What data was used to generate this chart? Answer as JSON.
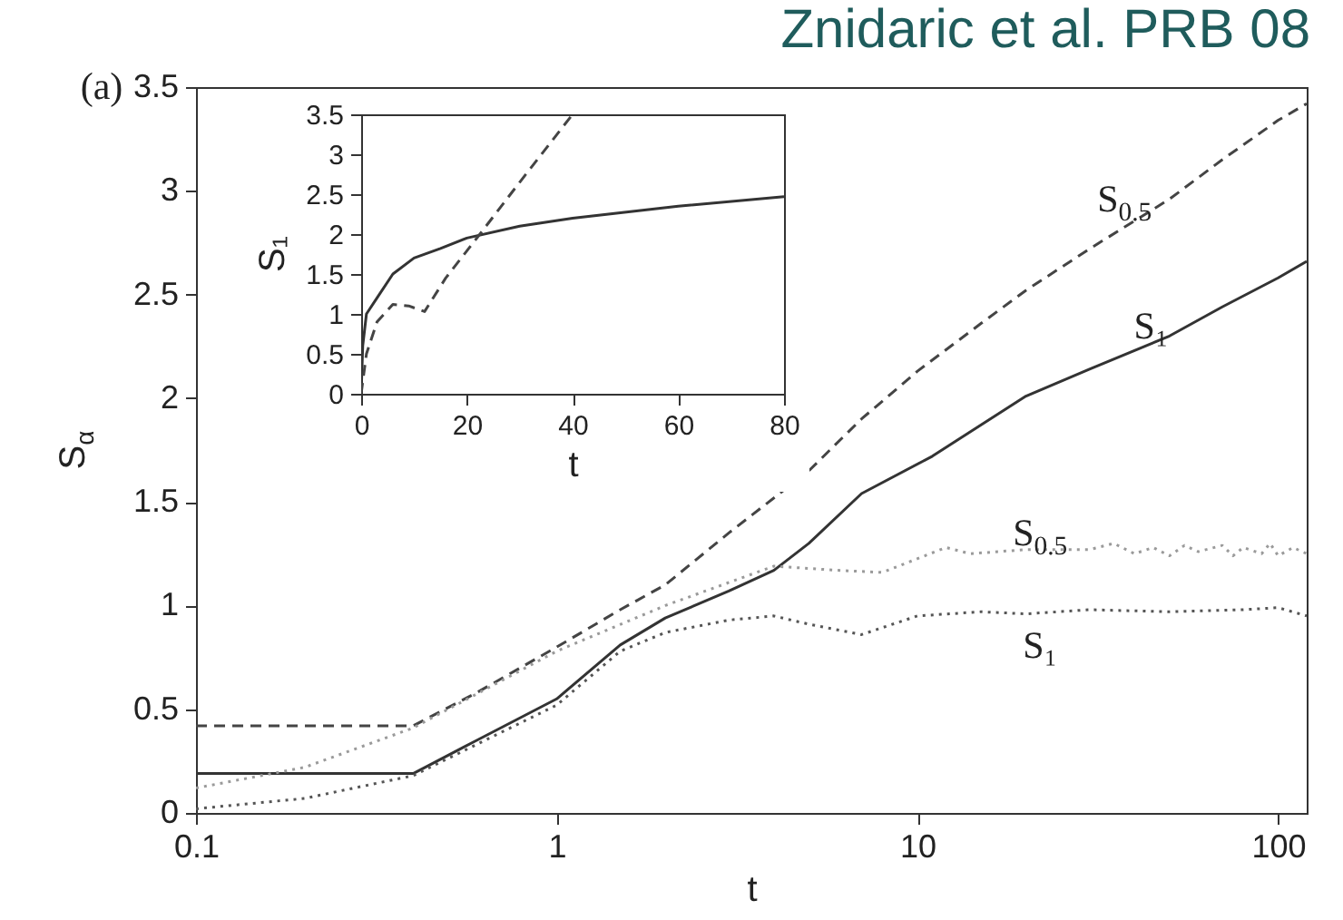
{
  "chart_data": [
    {
      "type": "line",
      "title": "Znidaric et al. PRB 08",
      "xlabel": "t",
      "ylabel": "S$_{α}$",
      "log": "x",
      "xlim": [
        0.1,
        120
      ],
      "ylim": [
        0,
        3.5
      ],
      "xticks": [
        0.1,
        1,
        10,
        100
      ],
      "yticks": [
        0,
        0.5,
        1,
        1.5,
        2,
        2.5,
        3,
        3.5
      ],
      "annotations": [
        "(a)",
        "S$_{0.5}$",
        "S₁",
        "S$_{0.5}$",
        "S₁"
      ],
      "series": [
        {
          "color": "#444444",
          "line_style": "dashed",
          "x": [
            0.1,
            0.4,
            0.6,
            1,
            1.5,
            2,
            3,
            5,
            7,
            10,
            15,
            20,
            30,
            50,
            70,
            100,
            120
          ],
          "values": [
            0.42,
            0.42,
            0.58,
            0.8,
            0.98,
            1.1,
            1.35,
            1.65,
            1.9,
            2.13,
            2.36,
            2.52,
            2.72,
            2.96,
            3.15,
            3.34,
            3.42
          ]
        },
        {
          "color": "#333333",
          "line_style": "solid",
          "x": [
            0.1,
            0.4,
            0.6,
            1,
            1.5,
            2,
            3,
            4,
            5,
            7,
            11,
            20,
            30,
            50,
            70,
            100,
            120
          ],
          "values": [
            0.19,
            0.19,
            0.35,
            0.55,
            0.81,
            0.94,
            1.07,
            1.17,
            1.3,
            1.54,
            1.72,
            2.01,
            2.14,
            2.3,
            2.44,
            2.58,
            2.66
          ]
        },
        {
          "color": "#9a9a9a",
          "line_style": "dotted",
          "x": [
            0.1,
            0.2,
            0.4,
            1,
            2,
            4,
            6,
            8,
            12,
            14,
            20,
            30,
            35,
            40,
            45,
            50,
            55,
            60,
            70,
            75,
            80,
            90,
            95,
            100,
            110,
            120
          ],
          "values": [
            0.12,
            0.22,
            0.41,
            0.78,
            1.0,
            1.19,
            1.17,
            1.16,
            1.28,
            1.25,
            1.27,
            1.27,
            1.3,
            1.25,
            1.28,
            1.24,
            1.29,
            1.26,
            1.29,
            1.24,
            1.28,
            1.25,
            1.3,
            1.24,
            1.28,
            1.25
          ]
        },
        {
          "color": "#555555",
          "line_style": "dotted",
          "x": [
            0.1,
            0.2,
            0.4,
            1,
            1.5,
            2,
            3,
            4,
            5,
            7,
            10,
            15,
            20,
            30,
            50,
            80,
            100,
            120
          ],
          "values": [
            0.02,
            0.07,
            0.18,
            0.52,
            0.78,
            0.87,
            0.93,
            0.95,
            0.91,
            0.86,
            0.95,
            0.97,
            0.96,
            0.98,
            0.97,
            0.98,
            0.99,
            0.95
          ]
        }
      ]
    },
    {
      "type": "line",
      "xlabel": "t",
      "ylabel": "S₁",
      "xlim": [
        0,
        80
      ],
      "ylim": [
        0,
        3.5
      ],
      "xticks": [
        0,
        20,
        40,
        60,
        80
      ],
      "yticks": [
        0,
        0.5,
        1,
        1.5,
        2,
        2.5,
        3,
        3.5
      ],
      "series": [
        {
          "color": "#333333",
          "line_style": "solid",
          "x": [
            0,
            0.3,
            1,
            3,
            6,
            10,
            15,
            20,
            30,
            40,
            60,
            80
          ],
          "values": [
            0,
            0.6,
            1.0,
            1.2,
            1.5,
            1.7,
            1.82,
            1.95,
            2.1,
            2.2,
            2.35,
            2.47
          ]
        },
        {
          "color": "#444444",
          "line_style": "dashed",
          "x": [
            0,
            1,
            3,
            6,
            9,
            12,
            16,
            22,
            30,
            40
          ],
          "values": [
            0,
            0.5,
            0.9,
            1.12,
            1.1,
            1.03,
            1.45,
            1.96,
            2.65,
            3.5
          ]
        }
      ]
    }
  ]
}
